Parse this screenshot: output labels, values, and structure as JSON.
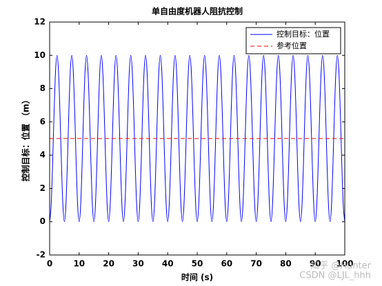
{
  "chart_data": {
    "type": "line",
    "title": "单自由度机器人阻抗控制",
    "x_label": "时间 (s)",
    "y_label": "控制目标：位置 （m）",
    "xlim": [
      0,
      100
    ],
    "xticks": [
      0,
      10,
      20,
      30,
      40,
      50,
      60,
      70,
      80,
      90,
      100
    ],
    "ylim": [
      -2,
      12
    ],
    "yticks": [
      -2,
      0,
      2,
      4,
      6,
      8,
      10,
      12
    ],
    "legend": "top-right",
    "watermarks": [
      "知乎 @Hunter",
      "CSDN @LJL_hhh"
    ],
    "x": [
      0,
      0.5,
      1,
      1.5,
      2,
      2.5,
      3,
      3.5,
      4,
      4.5,
      5,
      5.5,
      6,
      6.5,
      7,
      7.5,
      8,
      8.5,
      9,
      9.5,
      10,
      10.5,
      11,
      11.5,
      12,
      12.5,
      13,
      13.5,
      14,
      14.5,
      15,
      15.5,
      16,
      16.5,
      17,
      17.5,
      18,
      18.5,
      19,
      19.5,
      20,
      20.5,
      21,
      21.5,
      22,
      22.5,
      23,
      23.5,
      24,
      24.5,
      25,
      25.5,
      26,
      26.5,
      27,
      27.5,
      28,
      28.5,
      29,
      29.5,
      30,
      30.5,
      31,
      31.5,
      32,
      32.5,
      33,
      33.5,
      34,
      34.5,
      35,
      35.5,
      36,
      36.5,
      37,
      37.5,
      38,
      38.5,
      39,
      39.5,
      40,
      40.5,
      41,
      41.5,
      42,
      42.5,
      43,
      43.5,
      44,
      44.5,
      45,
      45.5,
      46,
      46.5,
      47,
      47.5,
      48,
      48.5,
      49,
      49.5,
      50,
      50.5,
      51,
      51.5,
      52,
      52.5,
      53,
      53.5,
      54,
      54.5,
      55,
      55.5,
      56,
      56.5,
      57,
      57.5,
      58,
      58.5,
      59,
      59.5,
      60,
      60.5,
      61,
      61.5,
      62,
      62.5,
      63,
      63.5,
      64,
      64.5,
      65,
      65.5,
      66,
      66.5,
      67,
      67.5,
      68,
      68.5,
      69,
      69.5,
      70,
      70.5,
      71,
      71.5,
      72,
      72.5,
      73,
      73.5,
      74,
      74.5,
      75,
      75.5,
      76,
      76.5,
      77,
      77.5,
      78,
      78.5,
      79,
      79.5,
      80,
      80.5,
      81,
      81.5,
      82,
      82.5,
      83,
      83.5,
      84,
      84.5,
      85,
      85.5,
      86,
      86.5,
      87,
      87.5,
      88,
      88.5,
      89,
      89.5,
      90,
      90.5,
      91,
      91.5,
      92,
      92.5,
      93,
      93.5,
      94,
      94.5,
      95,
      95.5,
      96,
      96.5,
      97,
      97.5,
      98,
      98.5,
      99,
      99.5,
      100
    ],
    "series": [
      {
        "name": "控制目标：位置",
        "color": "#0000ff",
        "dash": false,
        "values": [
          0,
          0.95,
          3.45,
          6.55,
          9.05,
          10,
          9.05,
          6.55,
          3.45,
          0.95,
          0,
          0.95,
          3.45,
          6.55,
          9.05,
          10,
          9.05,
          6.55,
          3.45,
          0.95,
          0,
          0.95,
          3.45,
          6.55,
          9.05,
          10,
          9.05,
          6.55,
          3.45,
          0.95,
          0,
          0.95,
          3.45,
          6.55,
          9.05,
          10,
          9.05,
          6.55,
          3.45,
          0.95,
          0,
          0.95,
          3.45,
          6.55,
          9.05,
          10,
          9.05,
          6.55,
          3.45,
          0.95,
          0,
          0.95,
          3.45,
          6.55,
          9.05,
          10,
          9.05,
          6.55,
          3.45,
          0.95,
          0,
          0.95,
          3.45,
          6.55,
          9.05,
          10,
          9.05,
          6.55,
          3.45,
          0.95,
          0,
          0.95,
          3.45,
          6.55,
          9.05,
          10,
          9.05,
          6.55,
          3.45,
          0.95,
          0,
          0.95,
          3.45,
          6.55,
          9.05,
          10,
          9.05,
          6.55,
          3.45,
          0.95,
          0,
          0.95,
          3.45,
          6.55,
          9.05,
          10,
          9.05,
          6.55,
          3.45,
          0.95,
          0,
          0.95,
          3.45,
          6.55,
          9.05,
          10,
          9.05,
          6.55,
          3.45,
          0.95,
          0,
          0.95,
          3.45,
          6.55,
          9.05,
          10,
          9.05,
          6.55,
          3.45,
          0.95,
          0,
          0.95,
          3.45,
          6.55,
          9.05,
          10,
          9.05,
          6.55,
          3.45,
          0.95,
          0,
          0.95,
          3.45,
          6.55,
          9.05,
          10,
          9.05,
          6.55,
          3.45,
          0.95,
          0,
          0.95,
          3.45,
          6.55,
          9.05,
          10,
          9.05,
          6.55,
          3.45,
          0.95,
          0,
          0.95,
          3.45,
          6.55,
          9.05,
          10,
          9.05,
          6.55,
          3.45,
          0.95,
          0,
          0.95,
          3.45,
          6.55,
          9.05,
          10,
          9.05,
          6.55,
          3.45,
          0.95,
          0,
          0.95,
          3.45,
          6.55,
          9.05,
          10,
          9.05,
          6.55,
          3.45,
          0.95,
          0,
          0.95,
          3.45,
          6.55,
          9.05,
          10,
          9.05,
          6.55,
          3.45,
          0.95,
          0,
          0.95,
          3.45,
          6.55,
          9.05,
          10,
          9.05,
          6.55,
          3.45,
          0.95,
          0
        ]
      },
      {
        "name": "参考位置",
        "color": "#ff0000",
        "dash": true,
        "x": [
          0,
          100
        ],
        "values": [
          5,
          5
        ]
      }
    ]
  }
}
